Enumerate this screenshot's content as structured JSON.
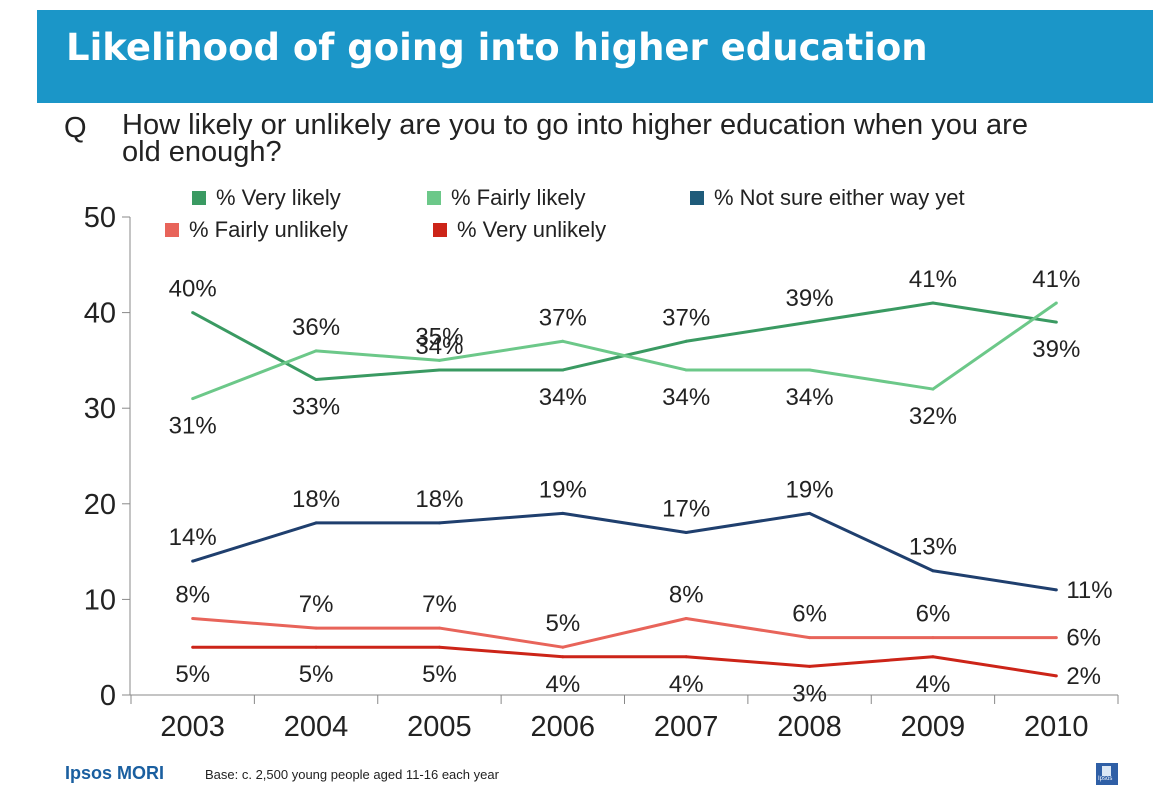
{
  "header": {
    "title": "Likelihood of going into higher education"
  },
  "question": {
    "marker": "Q",
    "text": "How likely or unlikely are you to go into higher education when you are old enough?"
  },
  "legend": [
    {
      "label": "% Very likely",
      "color": "#3a9a62"
    },
    {
      "label": "% Fairly likely",
      "color": "#6cc889"
    },
    {
      "label": "% Not sure either way yet",
      "color": "#1f5b7a"
    },
    {
      "label": "% Fairly unlikely",
      "color": "#e8645a"
    },
    {
      "label": "% Very unlikely",
      "color": "#cc2418"
    }
  ],
  "chart_data": {
    "type": "line",
    "title": "",
    "xlabel": "",
    "ylabel": "",
    "ylim": [
      0,
      50
    ],
    "yticks": [
      0,
      10,
      20,
      30,
      40,
      50
    ],
    "grid": false,
    "legend_position": "top",
    "categories": [
      "2003",
      "2004",
      "2005",
      "2006",
      "2007",
      "2008",
      "2009",
      "2010"
    ],
    "series": [
      {
        "name": "% Very likely",
        "color": "#3a9a62",
        "values": [
          40,
          33,
          34,
          34,
          37,
          39,
          41,
          39
        ]
      },
      {
        "name": "% Fairly likely",
        "color": "#6cc889",
        "values": [
          31,
          36,
          35,
          37,
          34,
          34,
          32,
          41
        ]
      },
      {
        "name": "% Not sure either way yet",
        "color": "#1f3f6e",
        "values": [
          14,
          18,
          18,
          19,
          17,
          19,
          13,
          11
        ]
      },
      {
        "name": "% Fairly unlikely",
        "color": "#e8645a",
        "values": [
          8,
          7,
          7,
          5,
          8,
          6,
          6,
          6
        ]
      },
      {
        "name": "% Very unlikely",
        "color": "#cc2418",
        "values": [
          5,
          5,
          5,
          4,
          4,
          3,
          4,
          2
        ]
      }
    ]
  },
  "footer": {
    "logo": "Ipsos MORI",
    "base": "Base: c. 2,500 young people aged 11-16 each year",
    "corner_logo": "Ipsos"
  }
}
